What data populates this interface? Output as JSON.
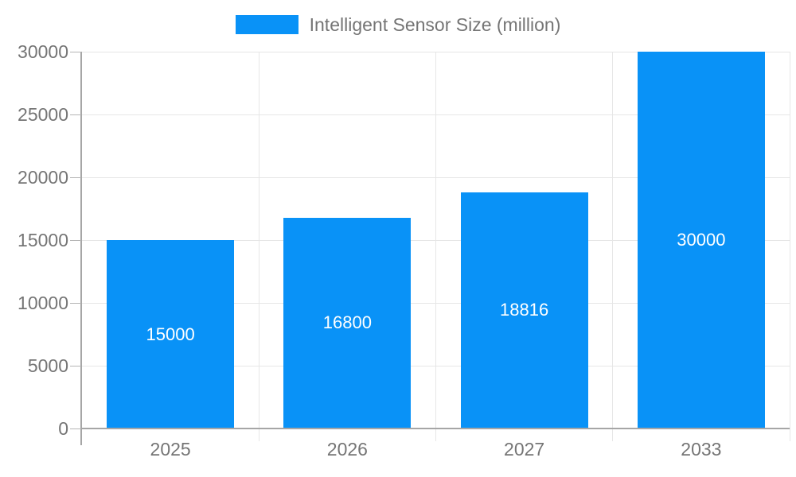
{
  "chart_data": {
    "type": "bar",
    "title": "",
    "legend": "Intelligent Sensor Size (million)",
    "legend_position": "top",
    "categories": [
      "2025",
      "2026",
      "2027",
      "2033"
    ],
    "series": [
      {
        "name": "Intelligent Sensor Size (million)",
        "values": [
          15000,
          16800,
          18816,
          30000
        ]
      }
    ],
    "value_labels": [
      "15000",
      "16800",
      "18816",
      "30000"
    ],
    "xlabel": "",
    "ylabel": "",
    "ylim": [
      0,
      30000
    ],
    "yticks": [
      0,
      5000,
      10000,
      15000,
      20000,
      25000,
      30000
    ],
    "grid": true
  },
  "colors": {
    "bar": "#0992f7",
    "bar_label_text": "#ffffff",
    "axis_line": "#a6a6a6",
    "tick_line": "#b5b5b5",
    "grid_line": "#e6e6e6",
    "tick_text": "#757575",
    "legend_text": "#757575",
    "background": "#ffffff"
  }
}
